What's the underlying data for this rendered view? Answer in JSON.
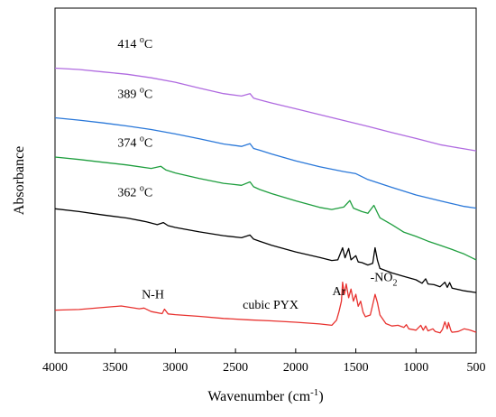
{
  "chart_data": {
    "type": "line",
    "xlabel": "Wavenumber (cm",
    "xlabel_sup": "-1",
    "xlabel_tail": ")",
    "ylabel": "Absorbance",
    "xlim": [
      4000,
      500
    ],
    "x_reversed": true,
    "xticks": [
      4000,
      3500,
      3000,
      2500,
      2000,
      1500,
      1000,
      500
    ],
    "grid": false,
    "series": [
      {
        "name": "414",
        "label_unit": "C",
        "label_deg": "o",
        "color": "#b06be0",
        "points": [
          [
            4000,
            0.826
          ],
          [
            3800,
            0.822
          ],
          [
            3600,
            0.815
          ],
          [
            3400,
            0.808
          ],
          [
            3200,
            0.798
          ],
          [
            3000,
            0.785
          ],
          [
            2800,
            0.768
          ],
          [
            2600,
            0.752
          ],
          [
            2450,
            0.745
          ],
          [
            2380,
            0.752
          ],
          [
            2350,
            0.739
          ],
          [
            2300,
            0.734
          ],
          [
            2200,
            0.725
          ],
          [
            2000,
            0.708
          ],
          [
            1800,
            0.691
          ],
          [
            1600,
            0.674
          ],
          [
            1400,
            0.657
          ],
          [
            1200,
            0.639
          ],
          [
            1000,
            0.622
          ],
          [
            800,
            0.604
          ],
          [
            700,
            0.598
          ],
          [
            600,
            0.592
          ],
          [
            500,
            0.586
          ]
        ]
      },
      {
        "name": "389",
        "label_unit": "C",
        "label_deg": "o",
        "color": "#2a78d9",
        "points": [
          [
            4000,
            0.682
          ],
          [
            3800,
            0.675
          ],
          [
            3600,
            0.667
          ],
          [
            3400,
            0.658
          ],
          [
            3200,
            0.648
          ],
          [
            3000,
            0.635
          ],
          [
            2800,
            0.621
          ],
          [
            2600,
            0.606
          ],
          [
            2450,
            0.599
          ],
          [
            2380,
            0.607
          ],
          [
            2350,
            0.593
          ],
          [
            2300,
            0.588
          ],
          [
            2200,
            0.577
          ],
          [
            2000,
            0.557
          ],
          [
            1800,
            0.54
          ],
          [
            1600,
            0.526
          ],
          [
            1500,
            0.52
          ],
          [
            1400,
            0.503
          ],
          [
            1200,
            0.48
          ],
          [
            1000,
            0.458
          ],
          [
            800,
            0.441
          ],
          [
            700,
            0.433
          ],
          [
            600,
            0.425
          ],
          [
            500,
            0.42
          ]
        ]
      },
      {
        "name": "374",
        "label_unit": "C",
        "label_deg": "o",
        "color": "#1e9e3e",
        "points": [
          [
            4000,
            0.568
          ],
          [
            3800,
            0.561
          ],
          [
            3600,
            0.553
          ],
          [
            3400,
            0.545
          ],
          [
            3200,
            0.535
          ],
          [
            3120,
            0.541
          ],
          [
            3080,
            0.531
          ],
          [
            3000,
            0.522
          ],
          [
            2800,
            0.506
          ],
          [
            2600,
            0.492
          ],
          [
            2450,
            0.486
          ],
          [
            2380,
            0.496
          ],
          [
            2350,
            0.482
          ],
          [
            2300,
            0.474
          ],
          [
            2200,
            0.462
          ],
          [
            2000,
            0.441
          ],
          [
            1800,
            0.422
          ],
          [
            1700,
            0.416
          ],
          [
            1600,
            0.423
          ],
          [
            1550,
            0.442
          ],
          [
            1520,
            0.42
          ],
          [
            1450,
            0.41
          ],
          [
            1400,
            0.405
          ],
          [
            1350,
            0.428
          ],
          [
            1320,
            0.406
          ],
          [
            1300,
            0.392
          ],
          [
            1200,
            0.372
          ],
          [
            1100,
            0.35
          ],
          [
            1000,
            0.338
          ],
          [
            900,
            0.324
          ],
          [
            800,
            0.312
          ],
          [
            700,
            0.3
          ],
          [
            600,
            0.287
          ],
          [
            500,
            0.27
          ]
        ]
      },
      {
        "name": "362",
        "label_unit": "C",
        "label_deg": "o",
        "color": "#000000",
        "points": [
          [
            4000,
            0.418
          ],
          [
            3800,
            0.41
          ],
          [
            3600,
            0.4
          ],
          [
            3400,
            0.391
          ],
          [
            3280,
            0.383
          ],
          [
            3240,
            0.38
          ],
          [
            3150,
            0.372
          ],
          [
            3100,
            0.378
          ],
          [
            3060,
            0.369
          ],
          [
            3000,
            0.364
          ],
          [
            2800,
            0.351
          ],
          [
            2600,
            0.34
          ],
          [
            2450,
            0.334
          ],
          [
            2380,
            0.342
          ],
          [
            2350,
            0.33
          ],
          [
            2300,
            0.324
          ],
          [
            2200,
            0.312
          ],
          [
            2000,
            0.293
          ],
          [
            1800,
            0.277
          ],
          [
            1700,
            0.268
          ],
          [
            1650,
            0.27
          ],
          [
            1610,
            0.305
          ],
          [
            1590,
            0.276
          ],
          [
            1560,
            0.303
          ],
          [
            1540,
            0.27
          ],
          [
            1500,
            0.282
          ],
          [
            1480,
            0.264
          ],
          [
            1450,
            0.262
          ],
          [
            1400,
            0.255
          ],
          [
            1360,
            0.26
          ],
          [
            1340,
            0.305
          ],
          [
            1320,
            0.268
          ],
          [
            1300,
            0.245
          ],
          [
            1200,
            0.232
          ],
          [
            1100,
            0.222
          ],
          [
            1000,
            0.212
          ],
          [
            950,
            0.202
          ],
          [
            920,
            0.215
          ],
          [
            900,
            0.2
          ],
          [
            850,
            0.198
          ],
          [
            800,
            0.192
          ],
          [
            760,
            0.205
          ],
          [
            740,
            0.19
          ],
          [
            720,
            0.204
          ],
          [
            700,
            0.188
          ],
          [
            600,
            0.18
          ],
          [
            500,
            0.175
          ]
        ]
      },
      {
        "name": "cubic PYX",
        "color": "#e8322f",
        "points": [
          [
            4000,
            0.124
          ],
          [
            3800,
            0.126
          ],
          [
            3600,
            0.132
          ],
          [
            3450,
            0.136
          ],
          [
            3300,
            0.128
          ],
          [
            3260,
            0.13
          ],
          [
            3200,
            0.12
          ],
          [
            3110,
            0.114
          ],
          [
            3090,
            0.127
          ],
          [
            3060,
            0.113
          ],
          [
            3000,
            0.111
          ],
          [
            2800,
            0.106
          ],
          [
            2600,
            0.1
          ],
          [
            2400,
            0.096
          ],
          [
            2200,
            0.093
          ],
          [
            2000,
            0.089
          ],
          [
            1800,
            0.084
          ],
          [
            1700,
            0.08
          ],
          [
            1660,
            0.095
          ],
          [
            1640,
            0.12
          ],
          [
            1620,
            0.15
          ],
          [
            1610,
            0.205
          ],
          [
            1595,
            0.17
          ],
          [
            1580,
            0.2
          ],
          [
            1560,
            0.16
          ],
          [
            1540,
            0.185
          ],
          [
            1520,
            0.15
          ],
          [
            1500,
            0.17
          ],
          [
            1480,
            0.135
          ],
          [
            1460,
            0.15
          ],
          [
            1440,
            0.118
          ],
          [
            1420,
            0.105
          ],
          [
            1380,
            0.11
          ],
          [
            1360,
            0.14
          ],
          [
            1340,
            0.17
          ],
          [
            1320,
            0.145
          ],
          [
            1300,
            0.11
          ],
          [
            1250,
            0.085
          ],
          [
            1200,
            0.078
          ],
          [
            1150,
            0.08
          ],
          [
            1100,
            0.074
          ],
          [
            1080,
            0.082
          ],
          [
            1060,
            0.07
          ],
          [
            1000,
            0.066
          ],
          [
            960,
            0.08
          ],
          [
            940,
            0.066
          ],
          [
            920,
            0.078
          ],
          [
            900,
            0.064
          ],
          [
            860,
            0.07
          ],
          [
            840,
            0.062
          ],
          [
            800,
            0.058
          ],
          [
            780,
            0.068
          ],
          [
            760,
            0.09
          ],
          [
            740,
            0.07
          ],
          [
            730,
            0.088
          ],
          [
            710,
            0.065
          ],
          [
            700,
            0.06
          ],
          [
            650,
            0.062
          ],
          [
            600,
            0.07
          ],
          [
            550,
            0.066
          ],
          [
            500,
            0.06
          ]
        ]
      }
    ],
    "annotations": [
      {
        "text": "N-H",
        "x": 3280,
        "y": 0.158
      },
      {
        "text": "cubic PYX",
        "x": 2440,
        "y": 0.128
      },
      {
        "text": "Ar",
        "x": 1695,
        "y": 0.168
      },
      {
        "text": "-NO",
        "sub": "2",
        "x": 1380,
        "y": 0.208
      }
    ],
    "series_labels": [
      {
        "series": 0,
        "x": 3480,
        "y": 0.885
      },
      {
        "series": 1,
        "x": 3480,
        "y": 0.74
      },
      {
        "series": 2,
        "x": 3480,
        "y": 0.598
      },
      {
        "series": 3,
        "x": 3480,
        "y": 0.454
      }
    ]
  }
}
